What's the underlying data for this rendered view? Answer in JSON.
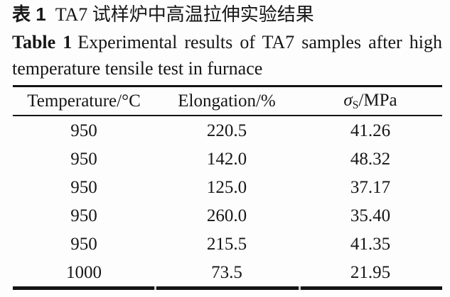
{
  "colors": {
    "background": "#fdfdfd",
    "text": "#161616",
    "rule": "#141414",
    "rule_gap": "#cfcfcf"
  },
  "caption_zh": {
    "label": "表 1",
    "title": "TA7 试样炉中高温拉伸实验结果"
  },
  "caption_en": {
    "label": "Table 1",
    "line1": "Experimental results of TA7 samples after high",
    "line2": "temperature tensile test in furnace"
  },
  "table": {
    "headers": {
      "temperature": "Temperature/°C",
      "elongation": "Elongation/%",
      "sigma_symbol": "σ",
      "sigma_subscript": "S",
      "sigma_suffix": "/MPa"
    },
    "rows": [
      [
        "950",
        "220.5",
        "41.26"
      ],
      [
        "950",
        "142.0",
        "48.32"
      ],
      [
        "950",
        "125.0",
        "37.17"
      ],
      [
        "950",
        "260.0",
        "35.40"
      ],
      [
        "950",
        "215.5",
        "41.35"
      ],
      [
        "1000",
        "73.5",
        "21.95"
      ]
    ]
  }
}
